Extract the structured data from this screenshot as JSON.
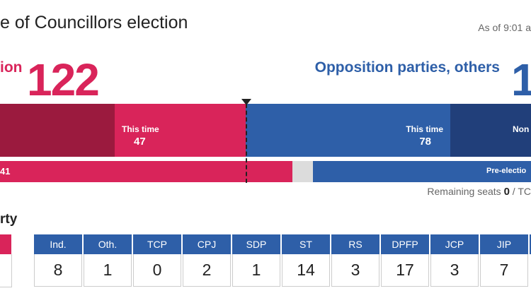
{
  "header": {
    "title": "e of Councillors election",
    "as_of": "As of 9:01 a"
  },
  "coalition": {
    "label": "ion",
    "total": "122",
    "color": "#d9245a",
    "dark_color": "#9b1a3e",
    "this_time_label": "This time",
    "this_time_seats": "47",
    "pre_election_value": "41"
  },
  "opposition": {
    "label": "Opposition parties, others",
    "total": "1",
    "color": "#2e5fa8",
    "dark_color": "#213f7a",
    "this_time_label": "This time",
    "this_time_seats": "78",
    "non_label": "Non",
    "pre_election_label": "Pre-electio"
  },
  "remaining": {
    "label": "Remaining seats",
    "value": "0",
    "suffix": "/ TC"
  },
  "by_party": {
    "title": "rty",
    "parties": [
      {
        "name": "Ind.",
        "seats": "8"
      },
      {
        "name": "Oth.",
        "seats": "1"
      },
      {
        "name": "TCP",
        "seats": "0"
      },
      {
        "name": "CPJ",
        "seats": "2"
      },
      {
        "name": "SDP",
        "seats": "1"
      },
      {
        "name": "ST",
        "seats": "14"
      },
      {
        "name": "RS",
        "seats": "3"
      },
      {
        "name": "DPFP",
        "seats": "17"
      },
      {
        "name": "JCP",
        "seats": "3"
      },
      {
        "name": "JIP",
        "seats": "7"
      }
    ]
  }
}
